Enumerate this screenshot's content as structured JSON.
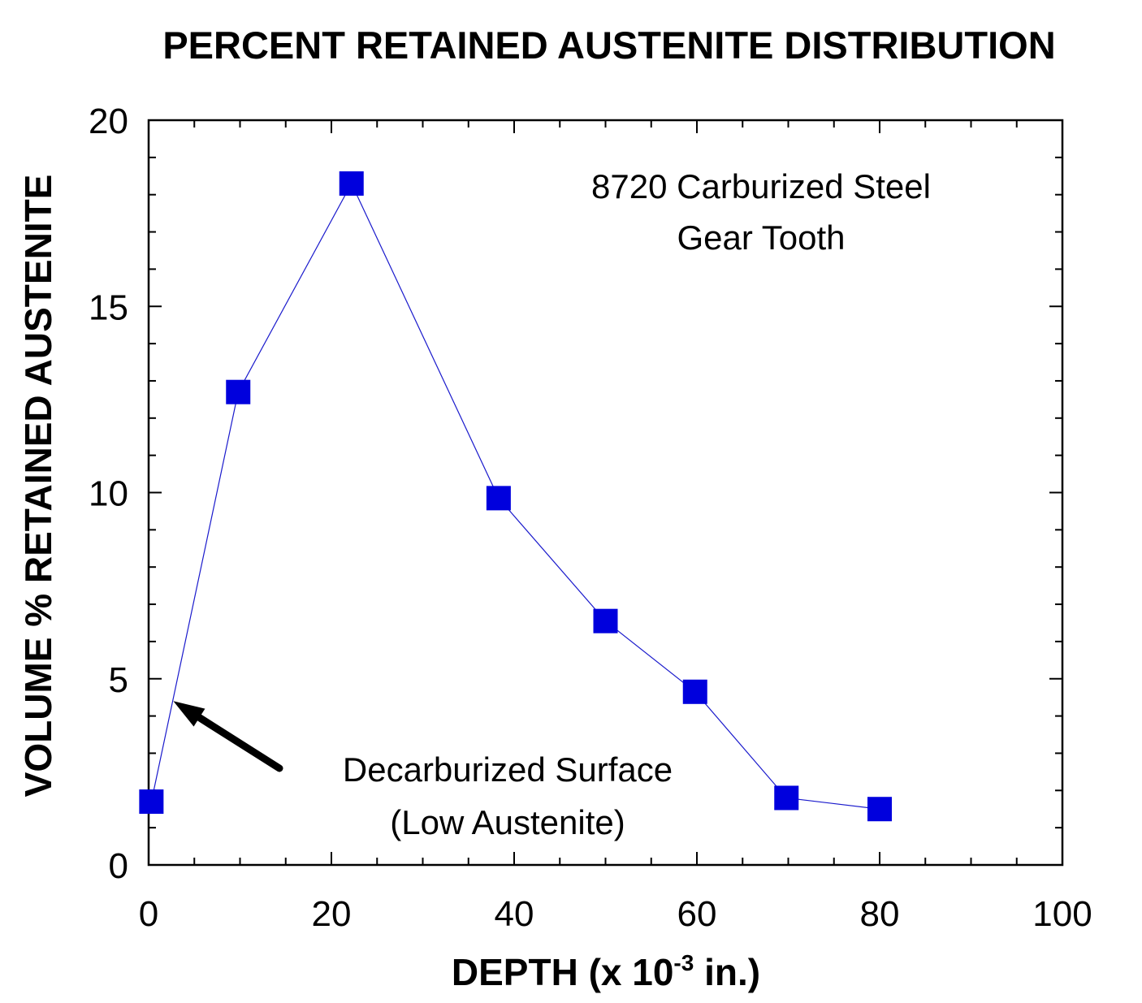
{
  "chart_data": {
    "type": "line",
    "title": "PERCENT RETAINED AUSTENITE DISTRIBUTION",
    "xlabel_main": "DEPTH (x 10",
    "xlabel_sup": "-3",
    "xlabel_tail": " in.)",
    "ylabel": "VOLUME % RETAINED AUSTENITE",
    "xlim": [
      0,
      100
    ],
    "ylim": [
      0,
      20
    ],
    "x_ticks": [
      0,
      20,
      40,
      60,
      80,
      100
    ],
    "y_ticks": [
      0,
      5,
      10,
      15,
      20
    ],
    "x_tick_labels": [
      "0",
      "20",
      "40",
      "60",
      "80",
      "100"
    ],
    "y_tick_labels": [
      "0",
      "5",
      "10",
      "15",
      "20"
    ],
    "grid": false,
    "marker": "square",
    "colors": {
      "series": "#0000dd",
      "line": "#1a1acc",
      "axes": "#000000",
      "arrow": "#000000"
    },
    "series": [
      {
        "x": [
          0.3,
          9.8,
          22.2,
          38.3,
          50.0,
          59.8,
          69.8,
          80.0
        ],
        "y": [
          1.7,
          12.7,
          18.3,
          9.85,
          6.55,
          4.65,
          1.8,
          1.5
        ]
      }
    ],
    "annotations": {
      "material_line1": "8720 Carburized Steel",
      "material_line2": "Gear Tooth",
      "arrow_line1": "Decarburized Surface",
      "arrow_line2": "(Low Austenite)",
      "arrow_target": {
        "x": 2.7,
        "y": 4.4
      }
    }
  }
}
